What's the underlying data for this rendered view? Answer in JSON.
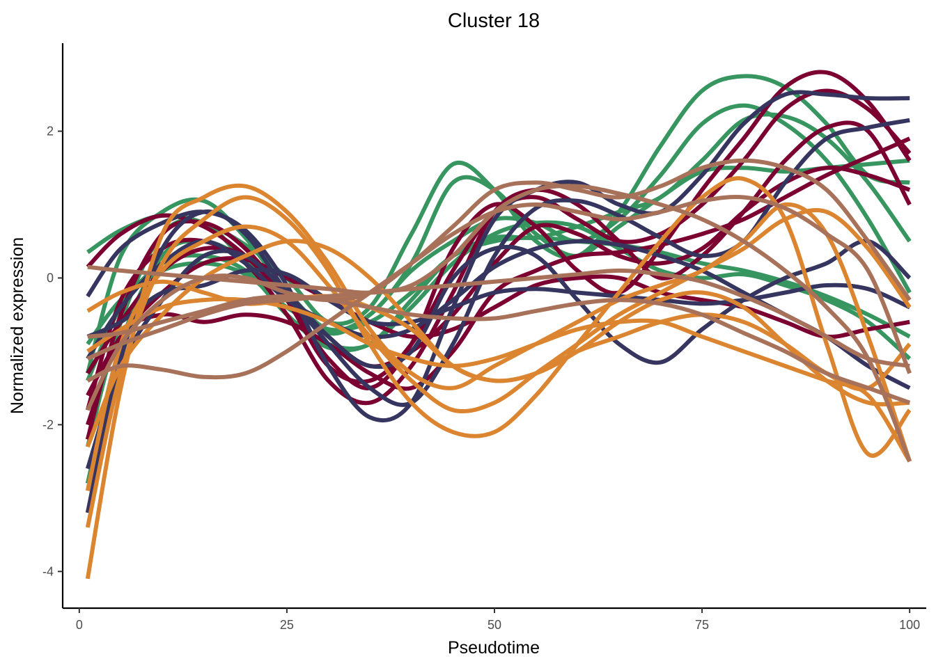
{
  "chart_data": {
    "type": "line",
    "title": "Cluster 18",
    "xlabel": "Pseudotime",
    "ylabel": "Normalized expression",
    "xlim": [
      -2,
      102
    ],
    "ylim": [
      -4.5,
      3.2
    ],
    "xticks": [
      0,
      25,
      50,
      75,
      100
    ],
    "xtick_labels": [
      "0",
      "25",
      "50",
      "75",
      "100"
    ],
    "yticks": [
      -4,
      -2,
      0,
      2
    ],
    "ytick_labels": [
      "-4",
      "-2",
      "0",
      "2"
    ],
    "grid": false,
    "legend": "none",
    "colors": {
      "crimson": "#7b0031",
      "navy": "#35355f",
      "green": "#37955f",
      "orange": "#dc8531",
      "tan": "#a8725a"
    },
    "x": [
      1,
      5,
      10,
      15,
      20,
      25,
      30,
      35,
      40,
      45,
      50,
      55,
      60,
      65,
      70,
      75,
      80,
      85,
      90,
      95,
      100
    ],
    "series": [
      {
        "color": "green",
        "values": [
          0.35,
          0.65,
          0.85,
          0.75,
          0.45,
          0.0,
          -0.6,
          -0.4,
          0.6,
          1.55,
          1.2,
          0.5,
          0.3,
          0.9,
          1.8,
          2.55,
          2.75,
          2.6,
          2.1,
          1.4,
          1.3
        ]
      },
      {
        "color": "green",
        "values": [
          -1.3,
          0.3,
          0.9,
          1.05,
          0.55,
          -0.2,
          -0.75,
          -0.5,
          0.1,
          0.5,
          0.8,
          0.75,
          0.5,
          0.8,
          1.4,
          2.1,
          2.35,
          2.1,
          1.6,
          0.8,
          -0.2
        ]
      },
      {
        "color": "green",
        "values": [
          -2.3,
          -0.6,
          0.6,
          0.75,
          0.2,
          -0.5,
          -0.9,
          -0.9,
          -0.3,
          0.3,
          0.55,
          0.55,
          0.7,
          0.9,
          1.1,
          1.6,
          2.15,
          2.2,
          1.9,
          1.3,
          0.5
        ]
      },
      {
        "color": "green",
        "values": [
          -2.8,
          -0.9,
          0.3,
          0.5,
          0.25,
          -0.2,
          -0.7,
          -0.5,
          0.2,
          1.3,
          1.2,
          0.6,
          0.3,
          0.7,
          1.1,
          1.45,
          1.5,
          1.45,
          1.5,
          1.55,
          1.6
        ]
      },
      {
        "color": "green",
        "values": [
          -1.4,
          -0.4,
          0.2,
          0.3,
          0.1,
          -0.5,
          -0.95,
          -0.9,
          -0.4,
          0.2,
          0.6,
          0.75,
          0.7,
          0.4,
          0.1,
          0.0,
          0.05,
          -0.1,
          -0.3,
          -0.6,
          -1.1
        ]
      },
      {
        "color": "green",
        "values": [
          -0.9,
          -0.3,
          0.1,
          0.2,
          0.05,
          -0.4,
          -0.7,
          -0.6,
          -0.2,
          0.3,
          0.5,
          0.55,
          0.5,
          0.45,
          0.35,
          0.2,
          0.1,
          -0.05,
          -0.25,
          -0.5,
          -0.8
        ]
      },
      {
        "color": "crimson",
        "values": [
          0.15,
          0.6,
          0.85,
          0.7,
          0.3,
          -0.3,
          -1.1,
          -1.5,
          -0.9,
          0.4,
          1.0,
          0.7,
          0.1,
          -0.2,
          0.4,
          1.2,
          1.9,
          2.6,
          2.8,
          2.4,
          1.6
        ]
      },
      {
        "color": "crimson",
        "values": [
          -2.2,
          -0.5,
          0.6,
          0.75,
          0.4,
          -0.3,
          -1.2,
          -1.4,
          -0.9,
          0.1,
          0.9,
          1.1,
          0.8,
          0.5,
          0.6,
          1.0,
          1.6,
          2.3,
          2.55,
          2.3,
          1.7
        ]
      },
      {
        "color": "crimson",
        "values": [
          -1.8,
          -0.3,
          0.4,
          0.5,
          0.2,
          -0.5,
          -1.4,
          -1.7,
          -1.2,
          -0.2,
          0.9,
          1.2,
          1.0,
          0.5,
          0.0,
          0.3,
          0.9,
          1.6,
          2.05,
          2.0,
          1.0
        ]
      },
      {
        "color": "crimson",
        "values": [
          -1.3,
          -0.6,
          0.1,
          0.4,
          0.3,
          -0.2,
          -0.8,
          -1.2,
          -1.0,
          -0.5,
          0.2,
          0.7,
          0.6,
          0.3,
          0.2,
          0.4,
          0.9,
          1.3,
          1.5,
          1.4,
          1.2
        ]
      },
      {
        "color": "crimson",
        "values": [
          -2.0,
          -0.8,
          -0.5,
          -0.6,
          -0.5,
          -0.6,
          -0.9,
          -1.3,
          -1.5,
          -1.0,
          -0.2,
          0.1,
          0.3,
          0.35,
          0.45,
          0.6,
          0.8,
          1.1,
          1.4,
          1.65,
          1.9
        ]
      },
      {
        "color": "crimson",
        "values": [
          -1.6,
          -0.8,
          -0.2,
          0.2,
          0.25,
          0.0,
          -0.3,
          -0.6,
          -0.8,
          -0.7,
          -0.4,
          -0.1,
          0.0,
          0.0,
          -0.2,
          -0.3,
          -0.4,
          -0.6,
          -0.8,
          -0.7,
          -0.6
        ]
      },
      {
        "color": "navy",
        "values": [
          -0.25,
          0.4,
          0.75,
          0.9,
          0.65,
          -0.1,
          -1.2,
          -1.9,
          -1.7,
          -0.4,
          0.8,
          1.2,
          1.3,
          1.0,
          0.9,
          1.4,
          2.1,
          2.5,
          2.5,
          2.45,
          2.45
        ]
      },
      {
        "color": "navy",
        "values": [
          -3.2,
          -1.1,
          0.4,
          0.9,
          0.6,
          -0.2,
          -0.9,
          -1.5,
          -1.7,
          -0.9,
          0.3,
          0.95,
          1.05,
          0.85,
          0.55,
          0.3,
          0.5,
          1.3,
          1.9,
          2.05,
          2.15
        ]
      },
      {
        "color": "navy",
        "values": [
          -0.8,
          -0.6,
          -0.2,
          -0.1,
          0.1,
          0.05,
          -0.3,
          -0.6,
          -0.6,
          -0.4,
          -0.2,
          -0.15,
          -0.2,
          -0.25,
          -0.3,
          -0.35,
          -0.3,
          -0.2,
          -0.1,
          -0.15,
          -0.4
        ]
      },
      {
        "color": "navy",
        "values": [
          -2.6,
          -1.2,
          -0.3,
          0.3,
          0.3,
          -0.2,
          -0.8,
          -1.2,
          -1.0,
          0.0,
          0.4,
          0.3,
          -0.3,
          -0.9,
          -1.15,
          -0.7,
          -0.3,
          0.0,
          0.2,
          0.5,
          0.0
        ]
      },
      {
        "color": "navy",
        "values": [
          -1.1,
          -0.4,
          0.2,
          0.5,
          0.2,
          -0.3,
          -0.6,
          -0.8,
          -0.7,
          -0.3,
          0.15,
          0.4,
          0.5,
          0.45,
          0.3,
          0.1,
          -0.2,
          -0.5,
          -0.8,
          -1.2,
          -1.5
        ]
      },
      {
        "color": "orange",
        "values": [
          -4.1,
          -1.5,
          0.6,
          1.1,
          1.25,
          0.9,
          0.2,
          -0.7,
          -1.3,
          -1.5,
          -1.2,
          -0.9,
          -0.6,
          -0.3,
          -0.1,
          0.1,
          0.5,
          1.0,
          0.6,
          -0.8,
          -2.5
        ]
      },
      {
        "color": "orange",
        "values": [
          -3.4,
          -1.3,
          0.2,
          0.8,
          1.1,
          0.8,
          0.1,
          -0.9,
          -1.7,
          -2.1,
          -2.1,
          -1.6,
          -0.9,
          -0.2,
          0.5,
          1.1,
          1.35,
          0.8,
          -0.9,
          -2.4,
          -1.8
        ]
      },
      {
        "color": "orange",
        "values": [
          -2.9,
          -0.9,
          0.1,
          0.5,
          0.7,
          0.5,
          -0.1,
          -0.8,
          -1.4,
          -1.8,
          -1.7,
          -1.3,
          -0.9,
          -0.5,
          -0.2,
          0.1,
          0.4,
          0.8,
          0.9,
          0.4,
          -0.4
        ]
      },
      {
        "color": "orange",
        "values": [
          -0.45,
          -0.2,
          -0.05,
          -0.2,
          -0.35,
          -0.3,
          -0.25,
          -0.4,
          -0.7,
          -1.2,
          -1.4,
          -1.3,
          -1.0,
          -0.6,
          -0.3,
          -0.2,
          -0.4,
          -0.9,
          -1.4,
          -1.7,
          -1.7
        ]
      },
      {
        "color": "orange",
        "values": [
          -1.0,
          -0.7,
          -0.4,
          -0.3,
          -0.3,
          -0.4,
          -0.6,
          -0.9,
          -1.1,
          -1.2,
          -1.1,
          -0.9,
          -0.7,
          -0.6,
          -0.6,
          -0.8,
          -1.0,
          -1.2,
          -1.4,
          -1.6,
          -2.5
        ]
      },
      {
        "color": "orange",
        "values": [
          -2.3,
          -1.2,
          -0.5,
          0.0,
          0.3,
          0.5,
          0.4,
          0.0,
          -0.6,
          -1.2,
          -1.4,
          -1.3,
          -1.0,
          -0.8,
          -0.6,
          -0.5,
          -0.6,
          -0.9,
          -1.3,
          -1.5,
          -0.9
        ]
      },
      {
        "color": "tan",
        "values": [
          0.15,
          0.1,
          0.05,
          0.0,
          -0.05,
          -0.1,
          -0.15,
          -0.2,
          -0.1,
          0.3,
          0.9,
          1.2,
          1.25,
          1.15,
          1.0,
          0.8,
          0.5,
          0.1,
          -0.4,
          -1.1,
          -2.5
        ]
      },
      {
        "color": "tan",
        "values": [
          -1.8,
          -0.9,
          -0.3,
          0.0,
          0.0,
          -0.2,
          -0.3,
          -0.2,
          0.2,
          0.7,
          1.2,
          1.3,
          1.2,
          1.1,
          1.25,
          1.5,
          1.6,
          1.5,
          1.2,
          0.5,
          -0.3
        ]
      },
      {
        "color": "tan",
        "values": [
          -1.4,
          -1.2,
          -1.25,
          -1.35,
          -1.3,
          -1.0,
          -0.6,
          -0.2,
          0.2,
          0.6,
          0.9,
          1.0,
          0.9,
          0.8,
          0.9,
          1.05,
          1.1,
          0.95,
          0.6,
          0.1,
          -1.3
        ]
      },
      {
        "color": "tan",
        "values": [
          -0.8,
          -0.75,
          -0.6,
          -0.45,
          -0.3,
          -0.25,
          -0.3,
          -0.4,
          -0.5,
          -0.55,
          -0.55,
          -0.45,
          -0.35,
          -0.3,
          -0.35,
          -0.5,
          -0.75,
          -1.0,
          -1.3,
          -1.5,
          -1.7
        ]
      },
      {
        "color": "tan",
        "values": [
          -1.1,
          -0.9,
          -0.7,
          -0.5,
          -0.35,
          -0.3,
          -0.25,
          -0.2,
          -0.15,
          -0.1,
          -0.05,
          0.0,
          0.05,
          0.1,
          0.05,
          -0.05,
          -0.25,
          -0.5,
          -0.8,
          -1.1,
          -1.2
        ]
      }
    ]
  }
}
